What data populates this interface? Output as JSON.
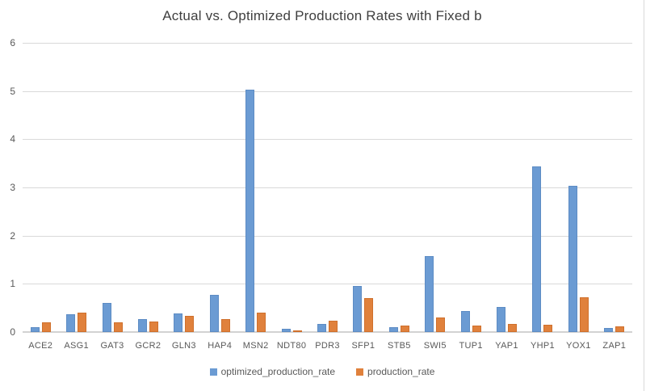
{
  "chart_data": {
    "type": "bar",
    "title": "Actual vs. Optimized Production Rates with Fixed b",
    "categories": [
      "ACE2",
      "ASG1",
      "GAT3",
      "GCR2",
      "GLN3",
      "HAP4",
      "MSN2",
      "NDT80",
      "PDR3",
      "SFP1",
      "STB5",
      "SWI5",
      "TUP1",
      "YAP1",
      "YHP1",
      "YOX1",
      "ZAP1"
    ],
    "series": [
      {
        "name": "optimized_production_rate",
        "color": "#6b9bd3",
        "values": [
          0.1,
          0.37,
          0.61,
          0.27,
          0.38,
          0.77,
          5.02,
          0.06,
          0.17,
          0.96,
          0.1,
          1.57,
          0.44,
          0.52,
          3.43,
          3.03,
          0.08
        ]
      },
      {
        "name": "production_rate",
        "color": "#e0813c",
        "values": [
          0.2,
          0.4,
          0.2,
          0.21,
          0.33,
          0.26,
          0.41,
          0.03,
          0.23,
          0.7,
          0.13,
          0.31,
          0.13,
          0.16,
          0.15,
          0.72,
          0.11
        ]
      }
    ],
    "xlabel": "",
    "ylabel": "",
    "ylim": [
      0,
      6
    ],
    "yticks": [
      0,
      1,
      2,
      3,
      4,
      5,
      6
    ],
    "grid": true,
    "legend_position": "bottom",
    "grid_color": "#d9d9d9",
    "text_color": "#595959",
    "title_color": "#3f3f3f",
    "background_color": "#ffffff"
  }
}
